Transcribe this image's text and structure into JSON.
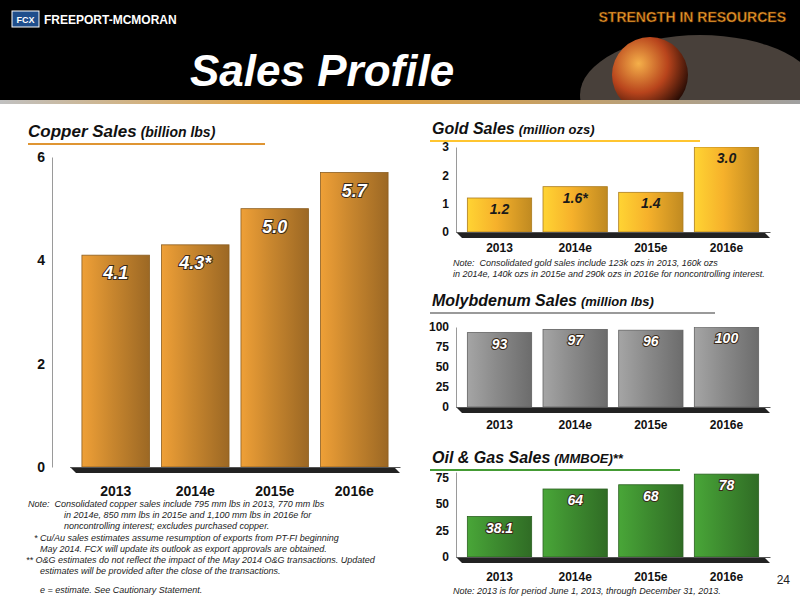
{
  "header": {
    "logo": "FCX",
    "company": "FREEPORT-MCMORAN",
    "tagline": "STRENGTH IN RESOURCES",
    "title": "Sales Profile",
    "page_number": "24"
  },
  "chart_data": [
    {
      "type": "bar",
      "title": "Copper Sales",
      "subtitle": "(billion lbs)",
      "categories": [
        "2013",
        "2014e",
        "2015e",
        "2016e"
      ],
      "values": [
        4.1,
        4.3,
        5.0,
        5.7
      ],
      "value_labels": [
        "4.1",
        "4.3*",
        "5.0",
        "5.7"
      ],
      "data_labels": true,
      "color": "#c8862e",
      "ylim": [
        0,
        6
      ],
      "yticks": [
        0,
        2,
        4,
        6
      ],
      "grid": false,
      "annotations": [
        "Note:  Consolidated copper sales include 795 mm lbs in 2013, 770 mm lbs",
        "in 2014e, 850 mm lbs in 2015e and 1,100 mm lbs in 2016e for",
        "noncontrolling interest; excludes purchased copper."
      ]
    },
    {
      "type": "bar",
      "title": "Gold Sales",
      "subtitle": "(million ozs)",
      "categories": [
        "2013",
        "2014e",
        "2015e",
        "2016e"
      ],
      "values": [
        1.2,
        1.6,
        1.4,
        3.0
      ],
      "value_labels": [
        "1.2",
        "1.6*",
        "1.4",
        "3.0"
      ],
      "data_labels": true,
      "color": "#f6b12b",
      "ylim": [
        0,
        3
      ],
      "yticks": [
        0,
        1,
        2,
        3
      ],
      "grid": false,
      "annotations": [
        "Note:  Consolidated gold sales include 123k ozs in 2013, 160k ozs",
        "in 2014e, 140k ozs in 2015e and 290k ozs in 2016e for noncontrolling interest."
      ]
    },
    {
      "type": "bar",
      "title": "Molybdenum Sales",
      "subtitle": "(million lbs)",
      "categories": [
        "2013",
        "2014e",
        "2015e",
        "2016e"
      ],
      "values": [
        93,
        97,
        96,
        100
      ],
      "data_labels": true,
      "color": "#8a8a8a",
      "ylim": [
        0,
        100
      ],
      "yticks": [
        0,
        25,
        50,
        75,
        100
      ],
      "grid": false
    },
    {
      "type": "bar",
      "title": "Oil & Gas Sales",
      "subtitle": "(MMBOE)**",
      "categories": [
        "2013",
        "2014e",
        "2015e",
        "2016e"
      ],
      "values": [
        38.1,
        64,
        68,
        78
      ],
      "data_labels": true,
      "color": "#3d8b2f",
      "ylim": [
        0,
        80
      ],
      "yticks": [
        0,
        25,
        50,
        75
      ],
      "grid": false,
      "annotations": [
        "Note: 2013 is for period June 1, 2013, through December 31, 2013."
      ]
    }
  ],
  "footnotes": [
    "* Cu/Au sales estimates assume resumption of exports from PT-FI beginning",
    "May 2014. FCX will update its outlook as export approvals are obtained.",
    "** O&G estimates do not reflect the impact of the May 2014 O&G transactions. Updated",
    "estimates will be provided after the close of the transactions.",
    "e = estimate. See Cautionary Statement."
  ]
}
